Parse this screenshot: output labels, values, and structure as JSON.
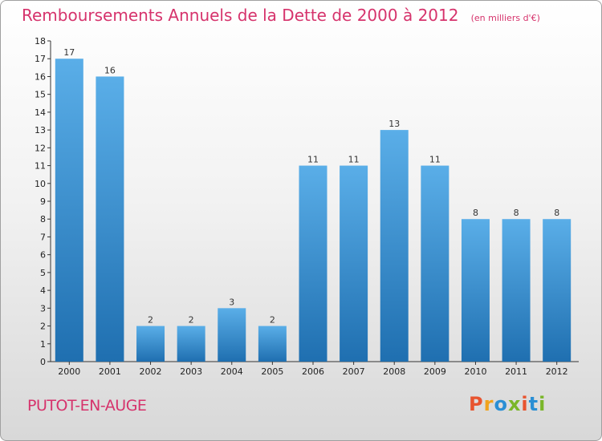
{
  "title": "Remboursements Annuels de la Dette de 2000 à 2012",
  "unit": "(en milliers d'€)",
  "place": "PUTOT-EN-AUGE",
  "logo": {
    "text": "Proxiti",
    "colors": [
      "#e8542f",
      "#f1a31c",
      "#2a8fd4",
      "#7ab629",
      "#e8542f",
      "#2a8fd4",
      "#7ab629"
    ]
  },
  "colors": {
    "bar_top": "#5aaee8",
    "bar_bottom": "#1f6fb0",
    "title": "#d6336c",
    "axis": "#333333"
  },
  "chart_data": {
    "type": "bar",
    "title": "Remboursements Annuels de la Dette de 2000 à 2012",
    "xlabel": "",
    "ylabel": "",
    "categories": [
      "2000",
      "2001",
      "2002",
      "2003",
      "2004",
      "2005",
      "2006",
      "2007",
      "2008",
      "2009",
      "2010",
      "2011",
      "2012"
    ],
    "values": [
      17,
      16,
      2,
      2,
      3,
      2,
      11,
      11,
      13,
      11,
      8,
      8,
      8
    ],
    "ylim": [
      0,
      18
    ],
    "yticks": [
      0,
      1,
      2,
      3,
      4,
      5,
      6,
      7,
      8,
      9,
      10,
      11,
      12,
      13,
      14,
      15,
      16,
      17,
      18
    ],
    "grid": false,
    "data_labels": true
  }
}
